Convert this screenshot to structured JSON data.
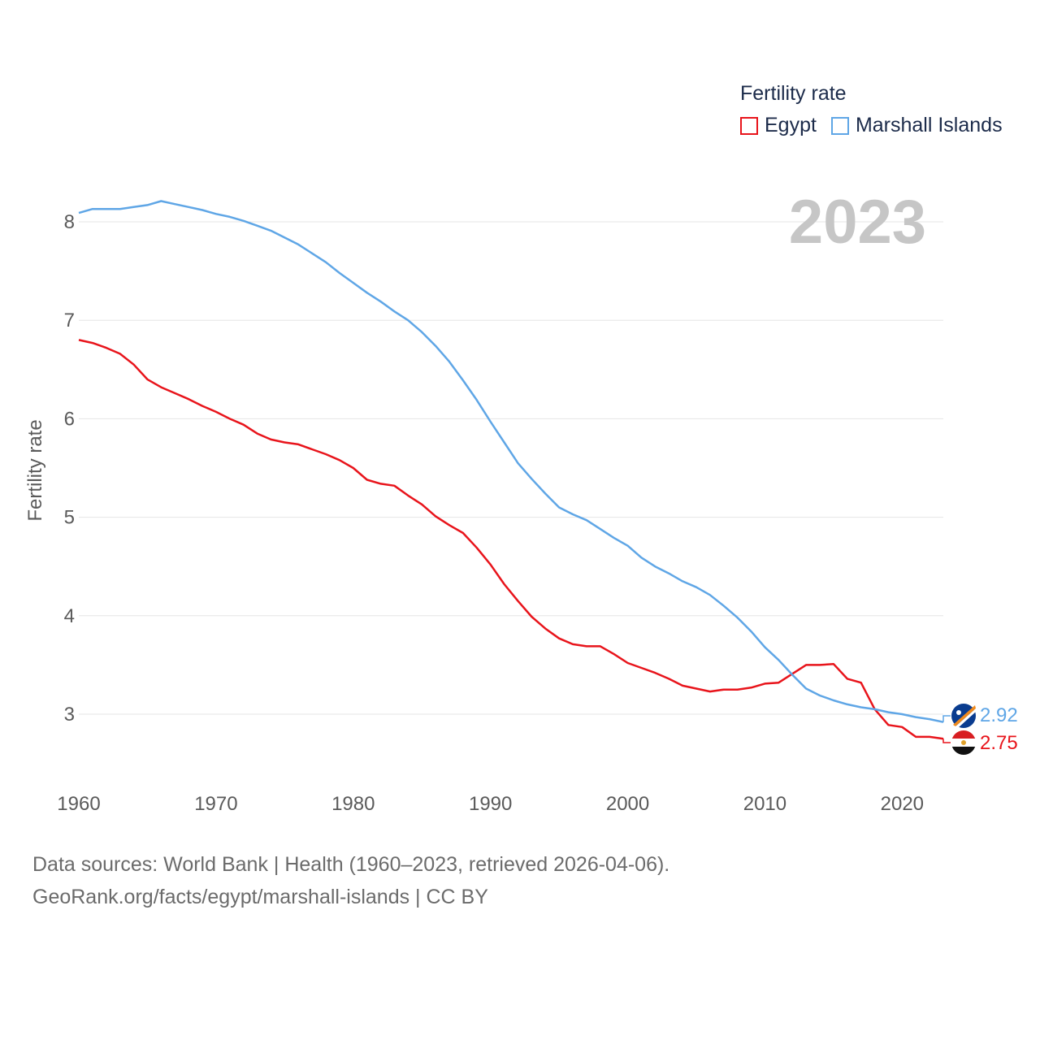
{
  "chart_data": {
    "type": "line",
    "title": "",
    "ylabel": "Fertility rate",
    "xlabel": "",
    "year_label": "2023",
    "xlim": [
      1960,
      2023
    ],
    "ylim": [
      2.5,
      8.5
    ],
    "x_ticks": [
      1960,
      1970,
      1980,
      1990,
      2000,
      2010,
      2020
    ],
    "y_ticks": [
      3,
      4,
      5,
      6,
      7,
      8
    ],
    "grid": true,
    "legend": {
      "title": "Fertility rate",
      "position": "top-right"
    },
    "x": [
      1960,
      1961,
      1962,
      1963,
      1964,
      1965,
      1966,
      1967,
      1968,
      1969,
      1970,
      1971,
      1972,
      1973,
      1974,
      1975,
      1976,
      1977,
      1978,
      1979,
      1980,
      1981,
      1982,
      1983,
      1984,
      1985,
      1986,
      1987,
      1988,
      1989,
      1990,
      1991,
      1992,
      1993,
      1994,
      1995,
      1996,
      1997,
      1998,
      1999,
      2000,
      2001,
      2002,
      2003,
      2004,
      2005,
      2006,
      2007,
      2008,
      2009,
      2010,
      2011,
      2012,
      2013,
      2014,
      2015,
      2016,
      2017,
      2018,
      2019,
      2020,
      2021,
      2022,
      2023
    ],
    "series": [
      {
        "name": "Egypt",
        "color": "#e8141b",
        "final_label": "2.75",
        "values": [
          6.8,
          6.77,
          6.72,
          6.66,
          6.55,
          6.4,
          6.32,
          6.26,
          6.2,
          6.13,
          6.07,
          6.0,
          5.94,
          5.85,
          5.79,
          5.76,
          5.74,
          5.69,
          5.64,
          5.58,
          5.5,
          5.38,
          5.34,
          5.32,
          5.22,
          5.13,
          5.01,
          4.92,
          4.84,
          4.69,
          4.52,
          4.32,
          4.15,
          3.99,
          3.87,
          3.77,
          3.71,
          3.69,
          3.69,
          3.61,
          3.52,
          3.47,
          3.42,
          3.36,
          3.29,
          3.26,
          3.23,
          3.25,
          3.25,
          3.27,
          3.31,
          3.32,
          3.41,
          3.5,
          3.5,
          3.51,
          3.36,
          3.32,
          3.05,
          2.89,
          2.87,
          2.77,
          2.77,
          2.75
        ]
      },
      {
        "name": "Marshall Islands",
        "color": "#5fa6e6",
        "final_label": "2.92",
        "values": [
          8.09,
          8.13,
          8.13,
          8.13,
          8.15,
          8.17,
          8.21,
          8.18,
          8.15,
          8.12,
          8.08,
          8.05,
          8.01,
          7.96,
          7.91,
          7.84,
          7.77,
          7.68,
          7.59,
          7.48,
          7.38,
          7.28,
          7.19,
          7.09,
          7.0,
          6.88,
          6.74,
          6.58,
          6.39,
          6.19,
          5.97,
          5.76,
          5.55,
          5.39,
          5.24,
          5.1,
          5.03,
          4.97,
          4.88,
          4.79,
          4.71,
          4.59,
          4.5,
          4.43,
          4.35,
          4.29,
          4.21,
          4.1,
          3.98,
          3.84,
          3.68,
          3.55,
          3.4,
          3.26,
          3.19,
          3.14,
          3.1,
          3.07,
          3.05,
          3.02,
          3.0,
          2.97,
          2.95,
          2.92
        ]
      }
    ]
  },
  "footer": {
    "line1": "Data sources: World Bank | Health (1960–2023, retrieved 2026-04-06).",
    "line2": "GeoRank.org/facts/egypt/marshall-islands | CC BY"
  },
  "colors": {
    "grid": "#e6e6e6",
    "axis_text": "#5a5a5a",
    "year_label": "#c6c6c6",
    "legend_text": "#1c2b4a"
  }
}
